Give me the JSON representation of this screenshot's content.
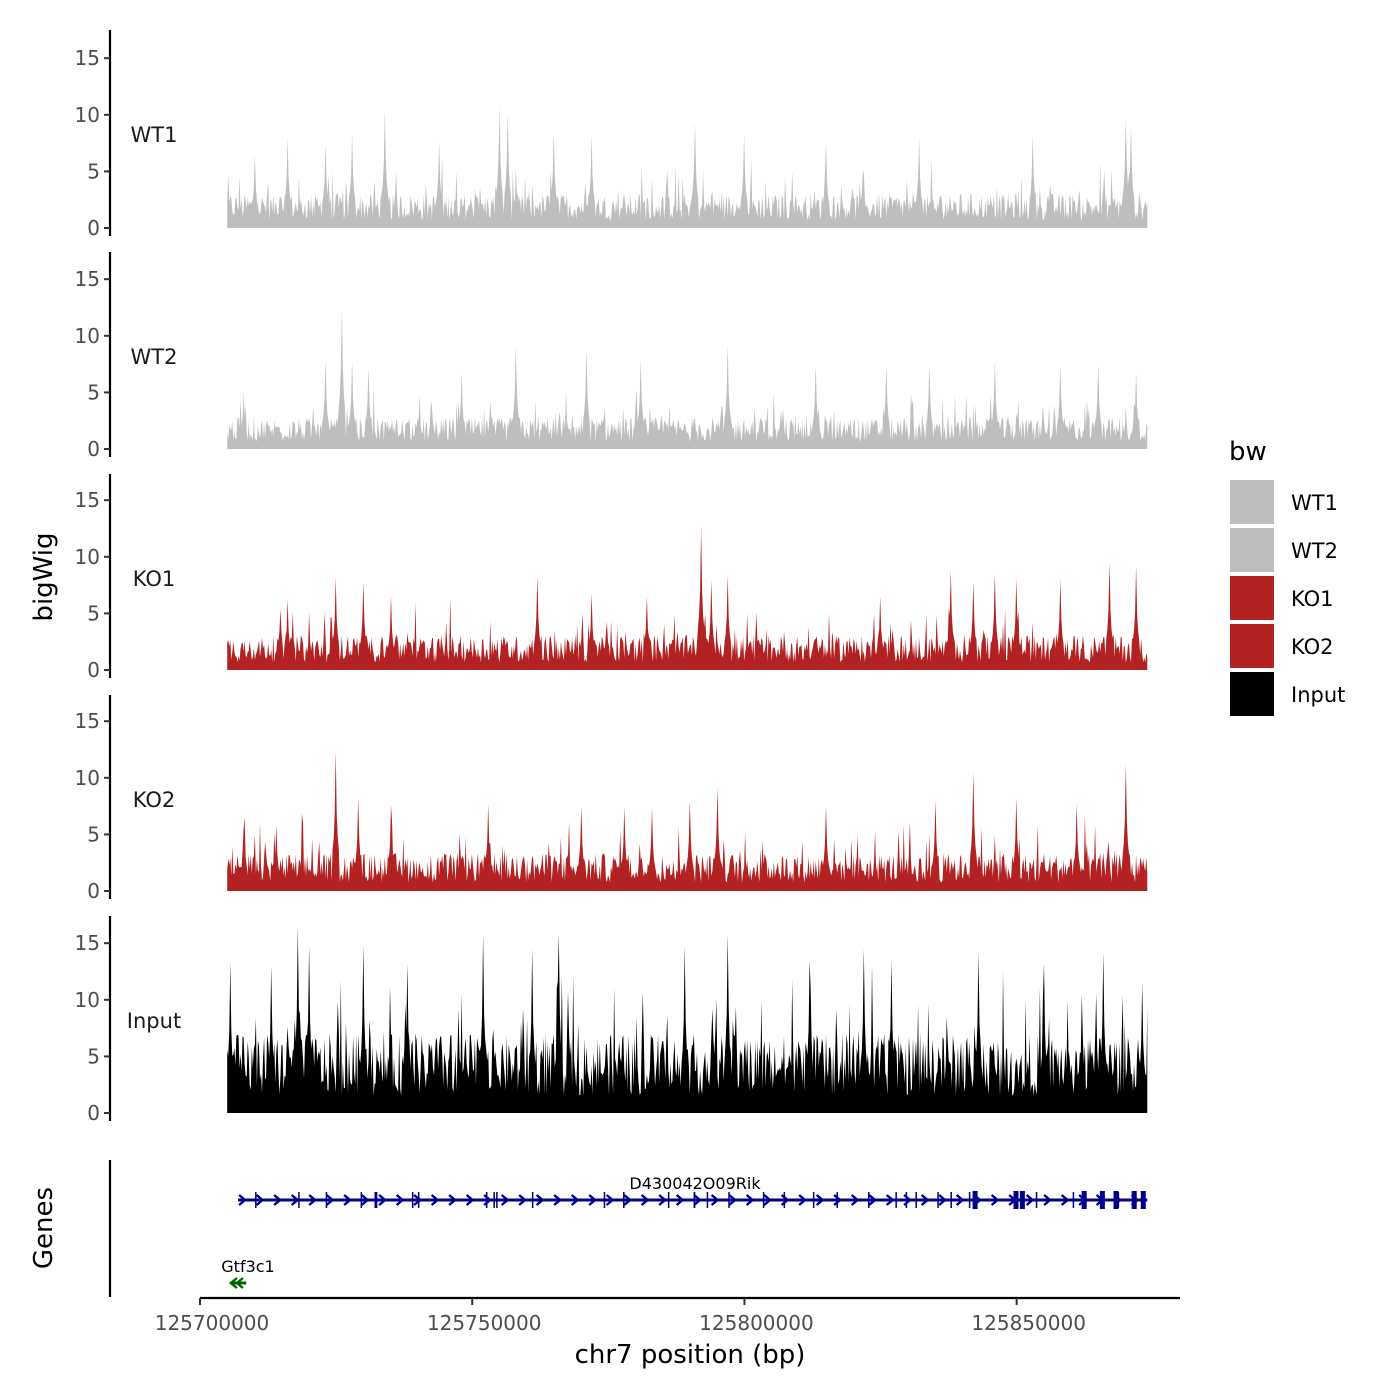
{
  "chart_data": {
    "type": "area",
    "title": "",
    "ylabel": "bigWig",
    "xlabel": "chr7 position (bp)",
    "genes_label": "Genes",
    "chromosome": "chr7",
    "xlim": [
      125700000,
      125880000
    ],
    "signal_range": [
      125705000,
      125874000
    ],
    "x_ticks": [
      125700000,
      125750000,
      125800000,
      125850000
    ],
    "x_tick_labels": [
      "125700000",
      "125750000",
      "125800000",
      "125850000"
    ],
    "ylim": [
      0,
      17
    ],
    "y_ticks": [
      0,
      5,
      10,
      15
    ],
    "y_tick_labels": [
      "0",
      "5",
      "10",
      "15"
    ],
    "series": [
      {
        "name": "WT1",
        "color": "#bebebe",
        "baseline": 2.2,
        "peaks": [
          {
            "x": 125710000,
            "y": 6.5
          },
          {
            "x": 125716000,
            "y": 8.0
          },
          {
            "x": 125723000,
            "y": 7.5
          },
          {
            "x": 125728000,
            "y": 8.5
          },
          {
            "x": 125734000,
            "y": 10.3
          },
          {
            "x": 125744000,
            "y": 7.8
          },
          {
            "x": 125755000,
            "y": 10.7
          },
          {
            "x": 125756500,
            "y": 10.2
          },
          {
            "x": 125765000,
            "y": 8.5
          },
          {
            "x": 125772000,
            "y": 8.2
          },
          {
            "x": 125791000,
            "y": 9.3
          },
          {
            "x": 125800000,
            "y": 8.3
          },
          {
            "x": 125815000,
            "y": 7.5
          },
          {
            "x": 125832000,
            "y": 8.0
          },
          {
            "x": 125853000,
            "y": 8.3
          },
          {
            "x": 125870000,
            "y": 9.8
          },
          {
            "x": 125871000,
            "y": 9.0
          }
        ]
      },
      {
        "name": "WT2",
        "color": "#bebebe",
        "baseline": 2.0,
        "peaks": [
          {
            "x": 125708000,
            "y": 5.0
          },
          {
            "x": 125723000,
            "y": 8.0
          },
          {
            "x": 125726000,
            "y": 12.5
          },
          {
            "x": 125728000,
            "y": 7.8
          },
          {
            "x": 125731000,
            "y": 7.2
          },
          {
            "x": 125748000,
            "y": 6.8
          },
          {
            "x": 125758000,
            "y": 9.2
          },
          {
            "x": 125771000,
            "y": 8.8
          },
          {
            "x": 125781000,
            "y": 8.0
          },
          {
            "x": 125797000,
            "y": 9.2
          },
          {
            "x": 125813000,
            "y": 7.5
          },
          {
            "x": 125826000,
            "y": 7.5
          },
          {
            "x": 125834000,
            "y": 7.5
          },
          {
            "x": 125846000,
            "y": 7.8
          },
          {
            "x": 125858000,
            "y": 7.5
          },
          {
            "x": 125865000,
            "y": 7.6
          },
          {
            "x": 125872000,
            "y": 6.8
          }
        ]
      },
      {
        "name": "KO1",
        "color": "#b22222",
        "baseline": 2.2,
        "peaks": [
          {
            "x": 125716000,
            "y": 6.3
          },
          {
            "x": 125725000,
            "y": 8.2
          },
          {
            "x": 125730000,
            "y": 7.8
          },
          {
            "x": 125735000,
            "y": 6.5
          },
          {
            "x": 125762000,
            "y": 8.3
          },
          {
            "x": 125772000,
            "y": 6.8
          },
          {
            "x": 125782000,
            "y": 6.5
          },
          {
            "x": 125792000,
            "y": 12.7
          },
          {
            "x": 125794000,
            "y": 7.9
          },
          {
            "x": 125797000,
            "y": 8.4
          },
          {
            "x": 125825000,
            "y": 6.5
          },
          {
            "x": 125838000,
            "y": 8.8
          },
          {
            "x": 125842000,
            "y": 7.8
          },
          {
            "x": 125846000,
            "y": 8.5
          },
          {
            "x": 125850000,
            "y": 8.0
          },
          {
            "x": 125858000,
            "y": 8.0
          },
          {
            "x": 125867000,
            "y": 9.5
          },
          {
            "x": 125872000,
            "y": 9.2
          }
        ]
      },
      {
        "name": "KO2",
        "color": "#b22222",
        "baseline": 2.4,
        "peaks": [
          {
            "x": 125708000,
            "y": 5.5
          },
          {
            "x": 125714000,
            "y": 5.8
          },
          {
            "x": 125725000,
            "y": 12.4
          },
          {
            "x": 125729000,
            "y": 8.2
          },
          {
            "x": 125735000,
            "y": 7.6
          },
          {
            "x": 125753000,
            "y": 7.7
          },
          {
            "x": 125770000,
            "y": 7.5
          },
          {
            "x": 125778000,
            "y": 7.4
          },
          {
            "x": 125783000,
            "y": 7.3
          },
          {
            "x": 125790000,
            "y": 8.0
          },
          {
            "x": 125795000,
            "y": 9.1
          },
          {
            "x": 125815000,
            "y": 7.5
          },
          {
            "x": 125835000,
            "y": 8.0
          },
          {
            "x": 125842000,
            "y": 10.5
          },
          {
            "x": 125850000,
            "y": 8.2
          },
          {
            "x": 125861000,
            "y": 7.7
          },
          {
            "x": 125870000,
            "y": 11.2
          }
        ]
      },
      {
        "name": "Input",
        "color": "#000000",
        "baseline": 5.0,
        "peaks": [
          {
            "x": 125705500,
            "y": 13.3
          },
          {
            "x": 125713000,
            "y": 13.0
          },
          {
            "x": 125718000,
            "y": 16.5
          },
          {
            "x": 125720000,
            "y": 14.8
          },
          {
            "x": 125730000,
            "y": 14.8
          },
          {
            "x": 125738000,
            "y": 13.2
          },
          {
            "x": 125752000,
            "y": 15.8
          },
          {
            "x": 125761000,
            "y": 14.5
          },
          {
            "x": 125766000,
            "y": 15.8
          },
          {
            "x": 125789000,
            "y": 14.8
          },
          {
            "x": 125797000,
            "y": 15.8
          },
          {
            "x": 125812000,
            "y": 13.5
          },
          {
            "x": 125822000,
            "y": 14.5
          },
          {
            "x": 125827000,
            "y": 13.5
          },
          {
            "x": 125843000,
            "y": 14.2
          },
          {
            "x": 125855000,
            "y": 13.2
          },
          {
            "x": 125866000,
            "y": 14.2
          },
          {
            "x": 125873000,
            "y": 11.5
          }
        ]
      }
    ],
    "genes": [
      {
        "name": "D430042O09Rik",
        "start": 125707000,
        "end": 125874000,
        "strand": "+",
        "color": "#00008b",
        "row": 1
      },
      {
        "name": "Gtf3c1",
        "start": 125705500,
        "end": 125708500,
        "strand": "-",
        "color": "#006400",
        "row": 2
      }
    ],
    "legend": {
      "title": "bw",
      "position": "right",
      "entries": [
        "WT1",
        "WT2",
        "KO1",
        "KO2",
        "Input"
      ]
    }
  }
}
